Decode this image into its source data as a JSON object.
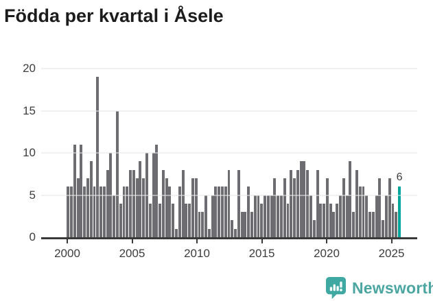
{
  "title": "Födda per kvartal i Åsele",
  "footer": {
    "brand_text": "Newsworthy",
    "brand_color": "#4ba6a1",
    "icon": "newsworthy-bar-chart-speech-bubble-icon",
    "icon_color": "#3fa8a2"
  },
  "chart_data": {
    "type": "bar",
    "title": "Födda per kvartal i Åsele",
    "x_unit": "quarter",
    "first_period": "2000 Q1",
    "last_period": "2025 Q2",
    "xtick_years": [
      2000,
      2005,
      2010,
      2015,
      2020,
      2025
    ],
    "ytick_values": [
      0,
      5,
      10,
      15,
      20
    ],
    "ylim": [
      0,
      20
    ],
    "grid": "horizontal",
    "colors": {
      "bar": "#6d6d71",
      "highlight": "#00a49c",
      "gridline": "#e6e6e6",
      "axis": "#3a3a3a",
      "labels": "#3d3d3d"
    },
    "series": [
      {
        "name": "Födda",
        "values_by_year": {
          "2000": [
            6,
            6,
            11,
            7
          ],
          "2001": [
            11,
            6,
            7,
            9
          ],
          "2002": [
            6,
            19,
            6,
            6
          ],
          "2003": [
            8,
            10,
            5,
            15
          ],
          "2004": [
            4,
            6,
            6,
            8
          ],
          "2005": [
            8,
            7,
            9,
            7
          ],
          "2006": [
            10,
            4,
            10,
            11
          ],
          "2007": [
            4,
            8,
            7,
            6
          ],
          "2008": [
            4,
            1,
            6,
            8
          ],
          "2009": [
            4,
            4,
            7,
            7
          ],
          "2010": [
            3,
            3,
            5,
            1
          ],
          "2011": [
            5,
            6,
            6,
            6
          ],
          "2012": [
            6,
            8,
            2,
            1
          ],
          "2013": [
            8,
            3,
            3,
            6
          ],
          "2014": [
            3,
            5,
            5,
            4
          ],
          "2015": [
            5,
            5,
            5,
            7
          ],
          "2016": [
            5,
            5,
            7,
            4
          ],
          "2017": [
            8,
            7,
            8,
            9
          ],
          "2018": [
            9,
            8,
            5,
            2
          ],
          "2019": [
            8,
            4,
            4,
            7
          ],
          "2020": [
            4,
            3,
            4,
            5
          ],
          "2021": [
            7,
            5,
            9,
            3
          ],
          "2022": [
            8,
            6,
            6,
            5
          ],
          "2023": [
            3,
            3,
            5,
            7
          ],
          "2024": [
            2,
            5,
            7,
            4
          ],
          "2025": [
            3,
            6
          ]
        }
      }
    ],
    "highlight_last": {
      "period": "2025 Q2",
      "value": 6,
      "label": "6"
    }
  }
}
